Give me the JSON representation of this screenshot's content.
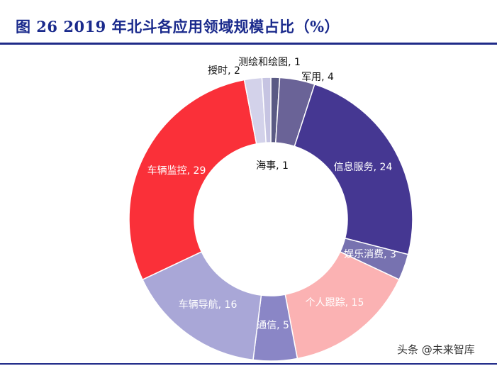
{
  "title": "图  26 2019 年北斗各应用领域规模占比（%）",
  "chart_data": {
    "type": "pie",
    "variant": "donut",
    "title": "图  26 2019 年北斗各应用领域规模占比（%）",
    "unit": "%",
    "slices": [
      {
        "label": "海事",
        "value": 1,
        "color": "#5a5a84"
      },
      {
        "label": "军用",
        "value": 4,
        "color": "#6a6397"
      },
      {
        "label": "信息服务",
        "value": 24,
        "color": "#453792"
      },
      {
        "label": "娱乐消费",
        "value": 3,
        "color": "#7772b0"
      },
      {
        "label": "个人跟踪",
        "value": 15,
        "color": "#fbb2b3"
      },
      {
        "label": "通信",
        "value": 5,
        "color": "#8a86c6"
      },
      {
        "label": "车辆导航",
        "value": 16,
        "color": "#a9a7d7"
      },
      {
        "label": "车辆监控",
        "value": 29,
        "color": "#fa3039"
      },
      {
        "label": "授时",
        "value": 2,
        "color": "#d3d2ea"
      },
      {
        "label": "测绘和绘图",
        "value": 1,
        "color": "#c6c4e2"
      }
    ],
    "data_labels": [
      "海事, 1",
      "军用, 4",
      "信息服务, 24",
      "娱乐消费, 3",
      "个人跟踪, 15",
      "通信, 5",
      "车辆导航, 16",
      "车辆监控, 29",
      "授时, 2",
      "测绘和绘图, 1"
    ]
  },
  "watermark": "头条 @未来智库"
}
